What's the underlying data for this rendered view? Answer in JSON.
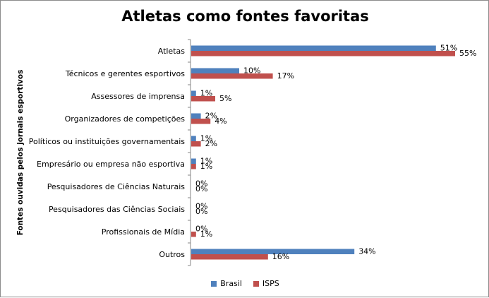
{
  "chart_data": {
    "type": "bar",
    "orientation": "horizontal",
    "title": "Atletas como fontes favoritas",
    "ylabel": "Fontes ouvidas  pelos jornais esportivos",
    "xlabel": "",
    "categories": [
      "Atletas",
      "Técnicos e gerentes esportivos",
      "Assessores de imprensa",
      "Organizadores de competições",
      "Políticos ou instituições governamentais",
      "Empresário ou empresa não esportiva",
      "Pesquisadores de Ciências Naturais",
      "Pesquisadores das Ciências Sociais",
      "Profissionais de Mídia",
      "Outros"
    ],
    "series": [
      {
        "name": "Brasil",
        "color": "#4f81bd",
        "values": [
          51,
          10,
          1,
          2,
          1,
          1,
          0,
          0,
          0,
          34
        ]
      },
      {
        "name": "ISPS",
        "color": "#c0504d",
        "values": [
          55,
          17,
          5,
          4,
          2,
          1,
          0,
          0,
          1,
          16
        ]
      }
    ],
    "value_suffix": "%",
    "xlim": [
      0,
      55
    ],
    "grid": false,
    "legend_position": "bottom"
  }
}
